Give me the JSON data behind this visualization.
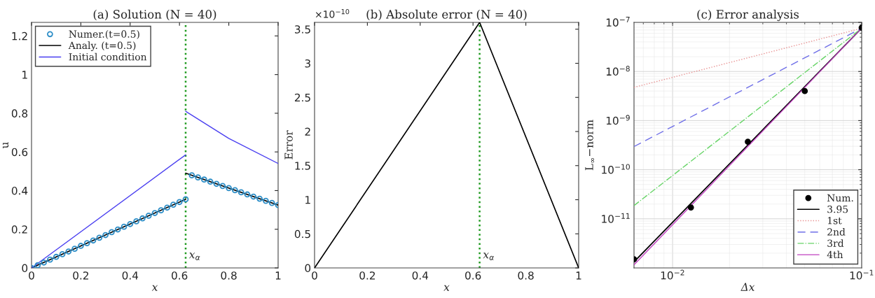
{
  "chart_data": [
    {
      "type": "line",
      "title": "(a) Solution (N = 40)",
      "xlabel": "x",
      "ylabel": "u",
      "xlim": [
        0,
        1
      ],
      "ylim": [
        0,
        1.27
      ],
      "xticks": [
        0,
        0.2,
        0.4,
        0.6,
        0.8,
        1
      ],
      "yticks": [
        0,
        0.2,
        0.4,
        0.6,
        0.8,
        1,
        1.2
      ],
      "legend": "top left",
      "grid": false,
      "series": [
        {
          "name": "Numer.(t=0.5)",
          "type": "scatter",
          "marker": "circle",
          "color": "#2f8fc8",
          "x": [
            0,
            0.025,
            0.05,
            0.075,
            0.1,
            0.125,
            0.15,
            0.175,
            0.2,
            0.225,
            0.25,
            0.275,
            0.3,
            0.325,
            0.35,
            0.375,
            0.4,
            0.425,
            0.45,
            0.475,
            0.5,
            0.525,
            0.55,
            0.575,
            0.6,
            0.625,
            0.65,
            0.675,
            0.7,
            0.725,
            0.75,
            0.775,
            0.8,
            0.825,
            0.85,
            0.875,
            0.9,
            0.925,
            0.95,
            0.975,
            1
          ],
          "values": [
            0,
            0.014,
            0.028,
            0.043,
            0.057,
            0.071,
            0.085,
            0.099,
            0.114,
            0.128,
            0.142,
            0.156,
            0.17,
            0.185,
            0.199,
            0.213,
            0.227,
            0.241,
            0.256,
            0.27,
            0.284,
            0.298,
            0.312,
            0.327,
            0.341,
            0.355,
            0.479,
            0.468,
            0.457,
            0.446,
            0.435,
            0.424,
            0.413,
            0.402,
            0.391,
            0.38,
            0.369,
            0.358,
            0.347,
            0.336,
            0.325
          ]
        },
        {
          "name": "Analy. (t=0.5)",
          "line_style": "solid",
          "color": "#000000",
          "x": [
            0,
            0.625
          ],
          "values": [
            0,
            0.355
          ]
        },
        {
          "line_style": "solid",
          "color": "#000000",
          "x": [
            0.625,
            1
          ],
          "values": [
            0.49,
            0.325
          ]
        },
        {
          "name": "Initial condition",
          "line_style": "solid",
          "color": "#4a3ff0",
          "x": [
            0,
            0.625
          ],
          "values": [
            0,
            0.585
          ]
        },
        {
          "line_style": "solid",
          "color": "#4a3ff0",
          "x": [
            0.625,
            0.8,
            1
          ],
          "values": [
            0.81,
            0.67,
            0.54
          ]
        }
      ],
      "ref_lines": [
        {
          "axis": "x",
          "value": 0.625,
          "label": "x$_{α}$",
          "color": "#1f9a1f",
          "line_style": "dotted"
        }
      ]
    },
    {
      "type": "line",
      "title": "(b) Absolute error (N = 40)",
      "xlabel": "x",
      "ylabel": "Error",
      "xlim": [
        0,
        1
      ],
      "ylim": [
        0,
        3.6
      ],
      "xticks": [
        0,
        0.2,
        0.4,
        0.6,
        0.8,
        1
      ],
      "yticks": [
        0,
        0.5,
        1,
        1.5,
        2,
        2.5,
        3,
        3.5
      ],
      "grid": false,
      "annotations": [
        "×10$^{−10}$"
      ],
      "series": [
        {
          "line_style": "solid",
          "color": "#000000",
          "x": [
            0,
            0.625,
            1
          ],
          "values": [
            0,
            3.6,
            0
          ]
        }
      ],
      "ref_lines": [
        {
          "axis": "x",
          "value": 0.625,
          "label": "x$_{α}$",
          "color": "#1f9a1f",
          "line_style": "dotted"
        }
      ]
    },
    {
      "type": "line",
      "title": "(c) Error analysis",
      "xlabel": "Δx",
      "ylabel": "L$_{∞}$−norm",
      "log": "xy",
      "xlim": [
        0.00625,
        0.1
      ],
      "ylim": [
        1e-12,
        1e-07
      ],
      "xticks": [
        {
          "value": 0.01,
          "label": "10$^{−2}$"
        },
        {
          "value": 0.1,
          "label": "10$^{−1}$"
        }
      ],
      "yticks": [
        {
          "value": 1e-11,
          "label": "10$^{−11}$"
        },
        {
          "value": 1e-10,
          "label": "10$^{−10}$"
        },
        {
          "value": 1e-09,
          "label": "10$^{−9}$"
        },
        {
          "value": 1e-08,
          "label": "10$^{−8}$"
        },
        {
          "value": 1e-07,
          "label": "10$^{−7}$"
        }
      ],
      "grid": true,
      "legend": "bottom right",
      "series": [
        {
          "name": "Num.",
          "type": "scatter",
          "marker": "circle",
          "color": "#000000",
          "x": [
            0.00625,
            0.0125,
            0.025,
            0.05,
            0.1
          ],
          "values": [
            1.5e-12,
            1.7e-11,
            3.7e-10,
            4e-09,
            7.8e-08
          ]
        },
        {
          "name": "3.95",
          "line_style": "solid",
          "color": "#000000",
          "x": [
            0.00625,
            0.1
          ],
          "values": [
            1.33e-12,
            7.6e-08
          ]
        },
        {
          "name": "1st",
          "line_style": "dotted",
          "color": "#e89090",
          "x": [
            0.00625,
            0.1
          ],
          "values": [
            4.75e-09,
            7.6e-08
          ]
        },
        {
          "name": "2nd",
          "line_style": "dashed",
          "color": "#6f6fe8",
          "x": [
            0.00625,
            0.1
          ],
          "values": [
            2.97e-10,
            7.6e-08
          ]
        },
        {
          "name": "3rd",
          "line_style": "dashdot",
          "color": "#66d466",
          "x": [
            0.00625,
            0.1
          ],
          "values": [
            1.86e-11,
            7.6e-08
          ]
        },
        {
          "name": "4th",
          "line_style": "solid",
          "color": "#c040c0",
          "x": [
            0.00625,
            0.1
          ],
          "values": [
            1.16e-12,
            7.6e-08
          ]
        }
      ]
    }
  ]
}
